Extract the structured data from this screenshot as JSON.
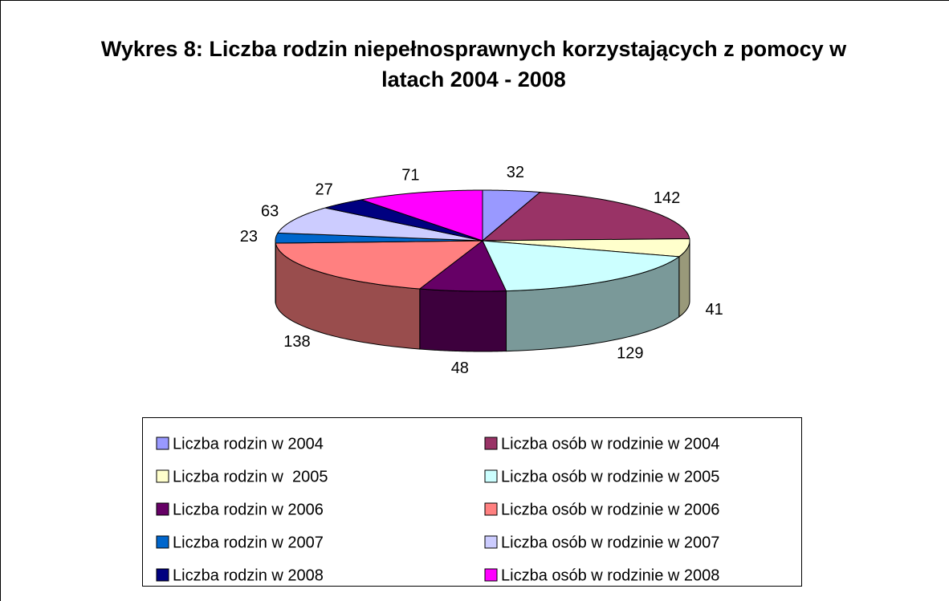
{
  "chart_data": {
    "type": "pie3d",
    "title": "Wykres 8: Liczba rodzin niepełnosprawnych korzystających z pomocy w latach 2004 - 2008",
    "categories": [
      "Liczba rodzin w 2004",
      "Liczba osób w rodzinie w 2004",
      "Liczba rodzin w  2005",
      "Liczba osób w rodzinie w 2005",
      "Liczba rodzin w 2006",
      "Liczba osób w rodzinie w 2006",
      "Liczba rodzin w 2007",
      "Liczba osób w rodzinie w 2007",
      "Liczba rodzin w 2008",
      "Liczba osób w rodzinie w 2008"
    ],
    "values": [
      32,
      142,
      41,
      129,
      48,
      138,
      23,
      63,
      27,
      71
    ],
    "colors": [
      "#9999ff",
      "#993366",
      "#ffffcc",
      "#ccffff",
      "#660066",
      "#ff8080",
      "#0066cc",
      "#ccccff",
      "#000080",
      "#ff00ff"
    ],
    "legend": "bottom"
  }
}
